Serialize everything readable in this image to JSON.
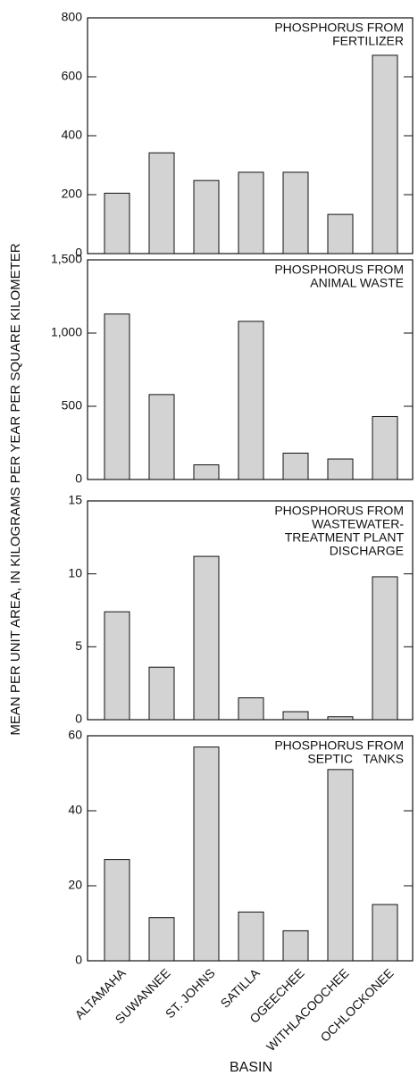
{
  "chart_data": {
    "type": "bar",
    "color": "#d3d3d3",
    "ylabel": "MEAN PER UNIT AREA, IN KILOGRAMS PER YEAR PER SQUARE KILOMETER",
    "xlabel": "BASIN",
    "categories": [
      "ALTAMAHA",
      "SUWANNEE",
      "ST. JOHNS",
      "SATILLA",
      "OGEECHEE",
      "WITHLACOOCHEE",
      "OCHLOCKONEE"
    ],
    "panels": [
      {
        "annotation": [
          "PHOSPHORUS FROM",
          "FERTILIZER"
        ],
        "values": [
          205,
          342,
          248,
          276,
          276,
          133,
          673
        ],
        "ylim": [
          0,
          800
        ],
        "yticks": [
          0,
          200,
          400,
          600,
          800
        ]
      },
      {
        "annotation": [
          "PHOSPHORUS FROM",
          "ANIMAL WASTE"
        ],
        "values": [
          1130,
          580,
          100,
          1080,
          180,
          140,
          430
        ],
        "ylim": [
          0,
          1500
        ],
        "yticks": [
          0,
          500,
          {
            "value": 1000,
            "label": "1,000"
          },
          {
            "value": 1500,
            "label": "1,500"
          }
        ]
      },
      {
        "annotation": [
          "PHOSPHORUS FROM",
          "WASTEWATER-",
          "TREATMENT PLANT",
          "DISCHARGE"
        ],
        "values": [
          7.4,
          3.6,
          11.2,
          1.5,
          0.55,
          0.2,
          9.8
        ],
        "ylim": [
          0,
          15
        ],
        "yticks": [
          0,
          5,
          10,
          15
        ]
      },
      {
        "annotation": [
          "PHOSPHORUS FROM",
          "SEPTIC   TANKS"
        ],
        "values": [
          27,
          11.5,
          57,
          13,
          8,
          51,
          15
        ],
        "ylim": [
          0,
          60
        ],
        "yticks": [
          0,
          20,
          40,
          60
        ]
      }
    ]
  }
}
